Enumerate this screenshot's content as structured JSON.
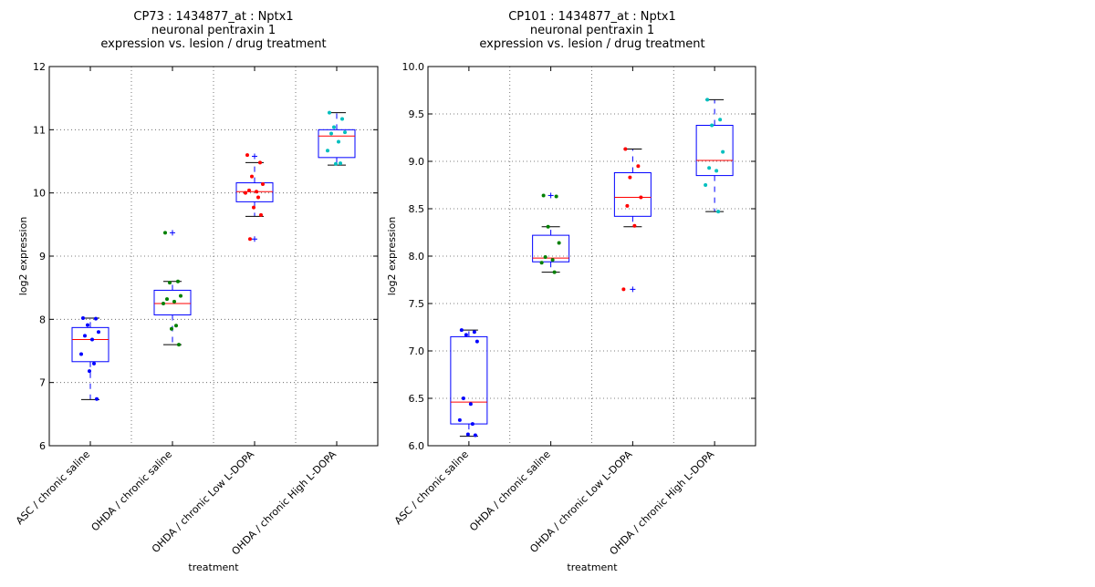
{
  "chart_data": [
    {
      "type": "box",
      "title_lines": [
        "CP73 : 1434877_at : Nptx1",
        "neuronal pentraxin 1",
        "expression vs. lesion / drug treatment"
      ],
      "xlabel": "treatment",
      "ylabel": "log2 expression",
      "ylim": [
        6,
        12
      ],
      "yticks": [
        6,
        7,
        8,
        9,
        10,
        11,
        12
      ],
      "ytick_labels": [
        "6",
        "7",
        "8",
        "9",
        "10",
        "11",
        "12"
      ],
      "grid": true,
      "categories": [
        "ASC / chronic saline",
        "OHDA / chronic saline",
        "OHDA / chronic Low L-DOPA",
        "OHDA / chronic High L-DOPA"
      ],
      "colors": [
        "#0000ff",
        "#008000",
        "#ff0000",
        "#00bfbf"
      ],
      "boxes": [
        {
          "whisker_low": 6.73,
          "q1": 7.33,
          "median": 7.68,
          "q3": 7.87,
          "whisker_high": 8.02,
          "outliers": []
        },
        {
          "whisker_low": 7.6,
          "q1": 8.07,
          "median": 8.25,
          "q3": 8.46,
          "whisker_high": 8.6,
          "outliers": [
            9.37
          ]
        },
        {
          "whisker_low": 9.63,
          "q1": 9.86,
          "median": 10.02,
          "q3": 10.16,
          "whisker_high": 10.48,
          "outliers": [
            9.27,
            10.58
          ]
        },
        {
          "whisker_low": 10.44,
          "q1": 10.56,
          "median": 10.9,
          "q3": 11.0,
          "whisker_high": 11.27,
          "outliers": []
        }
      ],
      "points": [
        [
          8.02,
          8.01,
          7.91,
          7.8,
          7.74,
          7.68,
          7.45,
          7.3,
          7.18,
          6.74
        ],
        [
          9.37,
          8.6,
          8.58,
          8.37,
          8.32,
          8.28,
          8.25,
          7.9,
          7.85,
          7.6
        ],
        [
          10.6,
          10.48,
          10.26,
          10.14,
          10.04,
          10.02,
          10.0,
          9.93,
          9.77,
          9.65,
          9.27
        ],
        [
          11.27,
          11.17,
          11.04,
          10.96,
          10.94,
          10.81,
          10.67,
          10.47,
          10.46
        ]
      ]
    },
    {
      "type": "box",
      "title_lines": [
        "CP101 : 1434877_at : Nptx1",
        "neuronal pentraxin 1",
        "expression vs. lesion / drug treatment"
      ],
      "xlabel": "treatment",
      "ylabel": "log2 expression",
      "ylim": [
        6.0,
        10.0
      ],
      "yticks": [
        6.0,
        6.5,
        7.0,
        7.5,
        8.0,
        8.5,
        9.0,
        9.5,
        10.0
      ],
      "ytick_labels": [
        "6.0",
        "6.5",
        "7.0",
        "7.5",
        "8.0",
        "8.5",
        "9.0",
        "9.5",
        "10.0"
      ],
      "grid": true,
      "categories": [
        "ASC / chronic saline",
        "OHDA / chronic saline",
        "OHDA / chronic Low L-DOPA",
        "OHDA / chronic High L-DOPA"
      ],
      "colors": [
        "#0000ff",
        "#008000",
        "#ff0000",
        "#00bfbf"
      ],
      "boxes": [
        {
          "whisker_low": 6.1,
          "q1": 6.23,
          "median": 6.46,
          "q3": 7.15,
          "whisker_high": 7.22,
          "outliers": []
        },
        {
          "whisker_low": 7.83,
          "q1": 7.94,
          "median": 7.98,
          "q3": 8.22,
          "whisker_high": 8.31,
          "outliers": [
            8.64
          ]
        },
        {
          "whisker_low": 8.31,
          "q1": 8.42,
          "median": 8.62,
          "q3": 8.88,
          "whisker_high": 9.13,
          "outliers": [
            7.65
          ]
        },
        {
          "whisker_low": 8.47,
          "q1": 8.85,
          "median": 9.01,
          "q3": 9.38,
          "whisker_high": 9.65,
          "outliers": []
        }
      ],
      "points": [
        [
          7.22,
          7.2,
          7.17,
          7.1,
          6.5,
          6.44,
          6.27,
          6.23,
          6.12,
          6.11
        ],
        [
          8.64,
          8.63,
          8.31,
          8.14,
          7.99,
          7.96,
          7.93,
          7.83
        ],
        [
          9.13,
          8.95,
          8.83,
          8.62,
          8.53,
          8.32,
          7.65
        ],
        [
          9.65,
          9.44,
          9.38,
          9.1,
          8.93,
          8.9,
          8.75,
          8.47
        ]
      ]
    }
  ]
}
